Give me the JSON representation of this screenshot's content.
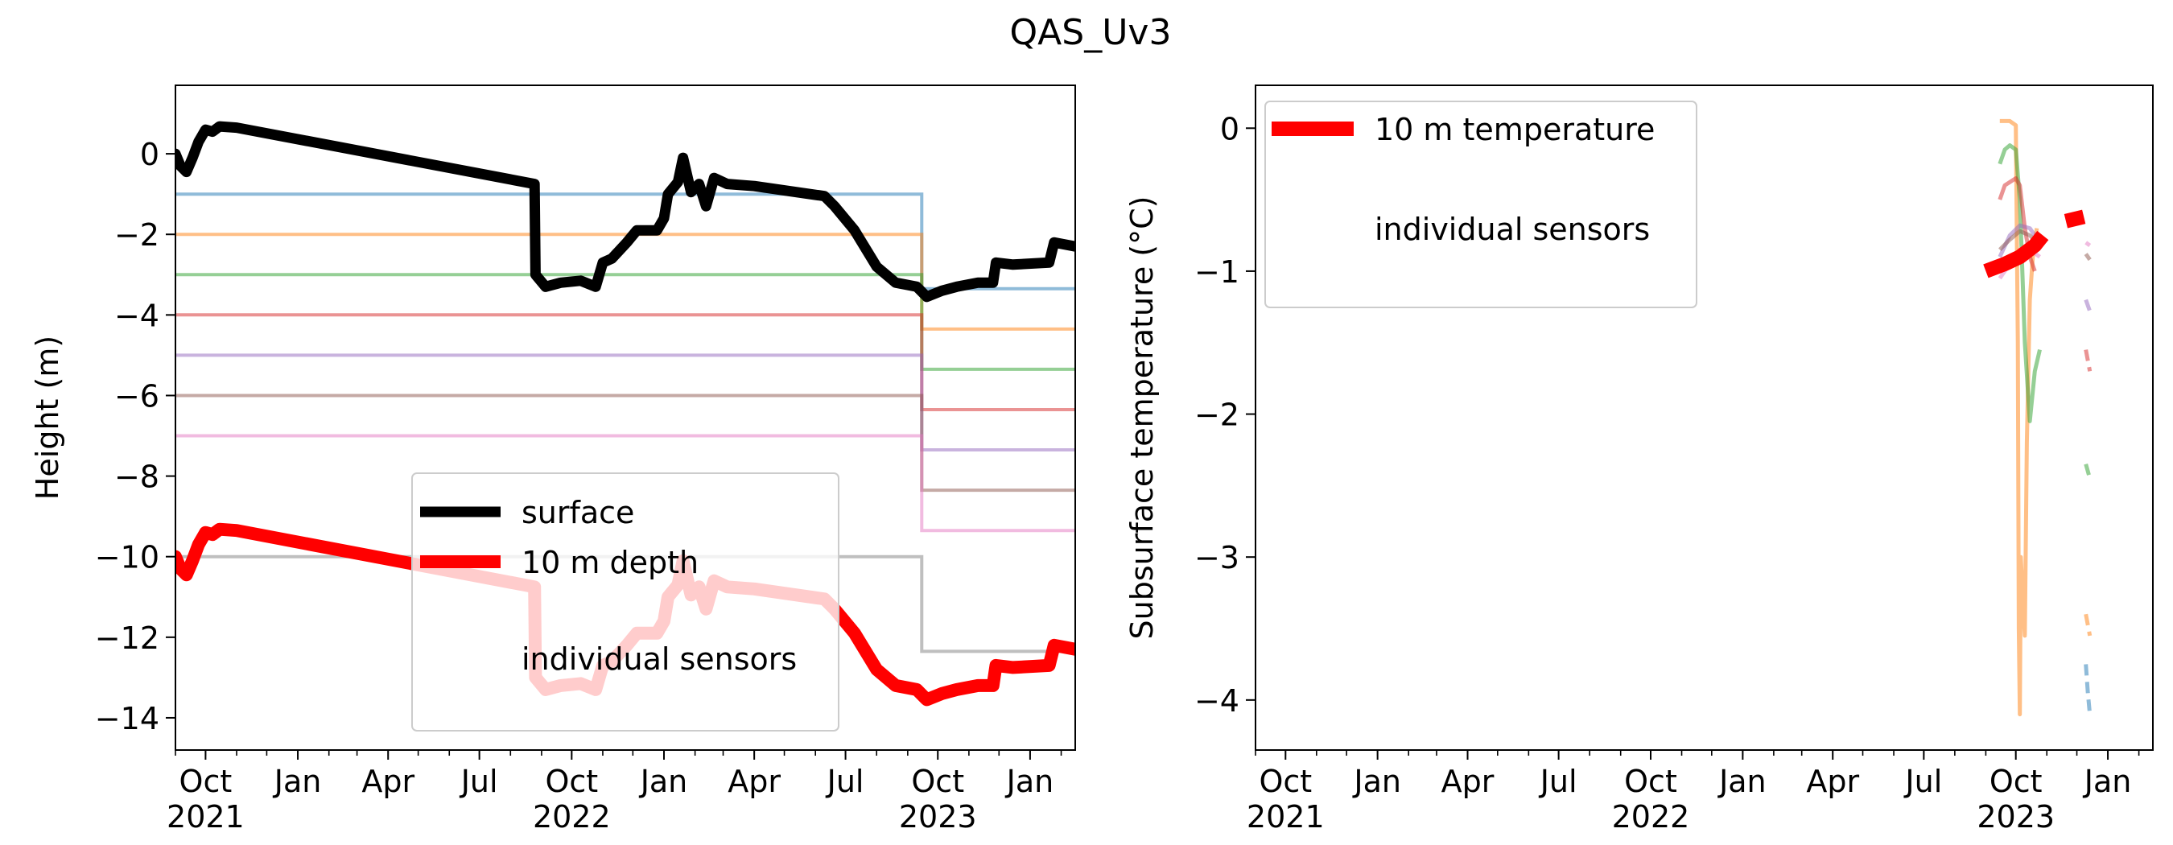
{
  "suptitle": "QAS_Uv3",
  "chart_data": [
    {
      "type": "line",
      "ylabel": "Height (m)",
      "xlim": [
        "2020-09-01",
        "2023-02-15"
      ],
      "ylim": [
        -14.8,
        1.7
      ],
      "yticks": [
        0,
        -2,
        -4,
        -6,
        -8,
        -10,
        -12,
        -14
      ],
      "xticks": [
        {
          "date": "2020-10-01",
          "label": "Oct",
          "year": "2021"
        },
        {
          "date": "2021-01-01",
          "label": "Jan",
          "year": ""
        },
        {
          "date": "2021-04-01",
          "label": "Apr",
          "year": ""
        },
        {
          "date": "2021-07-01",
          "label": "Jul",
          "year": ""
        },
        {
          "date": "2021-10-01",
          "label": "Oct",
          "year": "2022"
        },
        {
          "date": "2022-01-01",
          "label": "Jan",
          "year": ""
        },
        {
          "date": "2022-04-01",
          "label": "Apr",
          "year": ""
        },
        {
          "date": "2022-07-01",
          "label": "Jul",
          "year": ""
        },
        {
          "date": "2022-10-01",
          "label": "Oct",
          "year": "2023"
        },
        {
          "date": "2023-01-01",
          "label": "Jan",
          "year": ""
        }
      ],
      "legend": {
        "placement": "lower-center",
        "entries": [
          {
            "label": "surface",
            "color": "#000000"
          },
          {
            "label": "10 m depth",
            "color": "#ff0000"
          },
          {
            "label": "individual sensors",
            "color": ""
          }
        ]
      },
      "series": [
        {
          "legend": "surface",
          "color": "#000000",
          "points": [
            [
              "2020-09-01",
              0.0
            ],
            [
              "2020-09-06",
              -0.3
            ],
            [
              "2020-09-12",
              -0.45
            ],
            [
              "2020-09-18",
              -0.1
            ],
            [
              "2020-09-24",
              0.3
            ],
            [
              "2020-10-01",
              0.6
            ],
            [
              "2020-10-08",
              0.55
            ],
            [
              "2020-10-15",
              0.68
            ],
            [
              "2020-11-01",
              0.65
            ],
            [
              "2021-08-25",
              -0.75
            ],
            [
              "2021-08-26",
              -3.0
            ],
            [
              "2021-09-05",
              -3.3
            ],
            [
              "2021-09-20",
              -3.2
            ],
            [
              "2021-10-10",
              -3.15
            ],
            [
              "2021-10-25",
              -3.3
            ],
            [
              "2021-11-01",
              -2.7
            ],
            [
              "2021-11-10",
              -2.6
            ],
            [
              "2021-11-25",
              -2.2
            ],
            [
              "2021-12-05",
              -1.9
            ],
            [
              "2021-12-25",
              -1.9
            ],
            [
              "2022-01-01",
              -1.6
            ],
            [
              "2022-01-05",
              -1.0
            ],
            [
              "2022-01-15",
              -0.7
            ],
            [
              "2022-01-20",
              -0.1
            ],
            [
              "2022-01-28",
              -0.95
            ],
            [
              "2022-02-05",
              -0.75
            ],
            [
              "2022-02-12",
              -1.3
            ],
            [
              "2022-02-20",
              -0.6
            ],
            [
              "2022-03-05",
              -0.75
            ],
            [
              "2022-04-01",
              -0.8
            ],
            [
              "2022-06-10",
              -1.05
            ],
            [
              "2022-06-20",
              -1.3
            ],
            [
              "2022-07-10",
              -1.9
            ],
            [
              "2022-08-01",
              -2.8
            ],
            [
              "2022-08-20",
              -3.2
            ],
            [
              "2022-09-10",
              -3.3
            ],
            [
              "2022-09-20",
              -3.55
            ],
            [
              "2022-10-05",
              -3.4
            ],
            [
              "2022-10-20",
              -3.3
            ],
            [
              "2022-11-10",
              -3.2
            ],
            [
              "2022-11-25",
              -3.2
            ],
            [
              "2022-11-28",
              -2.7
            ],
            [
              "2022-12-15",
              -2.75
            ],
            [
              "2023-01-20",
              -2.7
            ],
            [
              "2023-01-25",
              -2.2
            ],
            [
              "2023-02-15",
              -2.3
            ]
          ]
        },
        {
          "legend": "10 m depth",
          "color": "#ff0000",
          "points": [
            [
              "2020-09-01",
              -10.0
            ],
            [
              "2020-09-06",
              -10.3
            ],
            [
              "2020-09-12",
              -10.45
            ],
            [
              "2020-09-18",
              -10.1
            ],
            [
              "2020-09-24",
              -9.7
            ],
            [
              "2020-10-01",
              -9.4
            ],
            [
              "2020-10-08",
              -9.45
            ],
            [
              "2020-10-15",
              -9.32
            ],
            [
              "2020-11-01",
              -9.35
            ],
            [
              "2021-08-25",
              -10.75
            ],
            [
              "2021-08-26",
              -13.0
            ],
            [
              "2021-09-05",
              -13.3
            ],
            [
              "2021-09-20",
              -13.2
            ],
            [
              "2021-10-10",
              -13.15
            ],
            [
              "2021-10-25",
              -13.3
            ],
            [
              "2021-11-01",
              -12.7
            ],
            [
              "2021-11-10",
              -12.6
            ],
            [
              "2021-11-25",
              -12.2
            ],
            [
              "2021-12-05",
              -11.9
            ],
            [
              "2021-12-25",
              -11.9
            ],
            [
              "2022-01-01",
              -11.6
            ],
            [
              "2022-01-05",
              -11.0
            ],
            [
              "2022-01-15",
              -10.7
            ],
            [
              "2022-01-20",
              -10.1
            ],
            [
              "2022-01-28",
              -10.95
            ],
            [
              "2022-02-05",
              -10.75
            ],
            [
              "2022-02-12",
              -11.3
            ],
            [
              "2022-02-20",
              -10.6
            ],
            [
              "2022-03-05",
              -10.75
            ],
            [
              "2022-04-01",
              -10.8
            ],
            [
              "2022-06-10",
              -11.05
            ],
            [
              "2022-06-20",
              -11.3
            ],
            [
              "2022-07-10",
              -11.9
            ],
            [
              "2022-08-01",
              -12.8
            ],
            [
              "2022-08-20",
              -13.2
            ],
            [
              "2022-09-10",
              -13.3
            ],
            [
              "2022-09-20",
              -13.55
            ],
            [
              "2022-10-05",
              -13.4
            ],
            [
              "2022-10-20",
              -13.3
            ],
            [
              "2022-11-10",
              -13.2
            ],
            [
              "2022-11-25",
              -13.2
            ],
            [
              "2022-11-28",
              -12.7
            ],
            [
              "2022-12-15",
              -12.75
            ],
            [
              "2023-01-20",
              -12.7
            ],
            [
              "2023-01-25",
              -12.2
            ],
            [
              "2023-02-15",
              -12.3
            ]
          ]
        }
      ],
      "sensor_depth_steps": [
        {
          "color": "#1f77b4",
          "points": [
            [
              "2020-09-01",
              -1
            ],
            [
              "2022-09-15",
              -1
            ],
            [
              "2022-09-15",
              -3.35
            ],
            [
              "2023-02-15",
              -3.35
            ]
          ]
        },
        {
          "color": "#ff7f0e",
          "points": [
            [
              "2020-09-01",
              -2
            ],
            [
              "2022-09-15",
              -2
            ],
            [
              "2022-09-15",
              -4.35
            ],
            [
              "2023-02-15",
              -4.35
            ]
          ]
        },
        {
          "color": "#2ca02c",
          "points": [
            [
              "2020-09-01",
              -3
            ],
            [
              "2022-09-15",
              -3
            ],
            [
              "2022-09-15",
              -5.35
            ],
            [
              "2023-02-15",
              -5.35
            ]
          ]
        },
        {
          "color": "#d62728",
          "points": [
            [
              "2020-09-01",
              -4
            ],
            [
              "2022-09-15",
              -4
            ],
            [
              "2022-09-15",
              -6.35
            ],
            [
              "2023-02-15",
              -6.35
            ]
          ]
        },
        {
          "color": "#9467bd",
          "points": [
            [
              "2020-09-01",
              -5
            ],
            [
              "2022-09-15",
              -5
            ],
            [
              "2022-09-15",
              -7.35
            ],
            [
              "2023-02-15",
              -7.35
            ]
          ]
        },
        {
          "color": "#8c564b",
          "points": [
            [
              "2020-09-01",
              -6
            ],
            [
              "2022-09-15",
              -6
            ],
            [
              "2022-09-15",
              -8.35
            ],
            [
              "2023-02-15",
              -8.35
            ]
          ]
        },
        {
          "color": "#e377c2",
          "points": [
            [
              "2020-09-01",
              -7
            ],
            [
              "2022-09-15",
              -7
            ],
            [
              "2022-09-15",
              -9.35
            ],
            [
              "2023-02-15",
              -9.35
            ]
          ]
        },
        {
          "color": "#7f7f7f",
          "points": [
            [
              "2020-09-01",
              -10
            ],
            [
              "2022-09-15",
              -10
            ],
            [
              "2022-09-15",
              -12.35
            ],
            [
              "2023-02-15",
              -12.35
            ]
          ]
        }
      ]
    },
    {
      "type": "line",
      "ylabel": "Subsurface temperature (°C)",
      "xlim": [
        "2020-09-01",
        "2023-02-15"
      ],
      "ylim": [
        -4.35,
        0.3
      ],
      "yticks": [
        0,
        -1,
        -2,
        -3,
        -4
      ],
      "xticks": [
        {
          "date": "2020-10-01",
          "label": "Oct",
          "year": "2021"
        },
        {
          "date": "2021-01-01",
          "label": "Jan",
          "year": ""
        },
        {
          "date": "2021-04-01",
          "label": "Apr",
          "year": ""
        },
        {
          "date": "2021-07-01",
          "label": "Jul",
          "year": ""
        },
        {
          "date": "2021-10-01",
          "label": "Oct",
          "year": "2022"
        },
        {
          "date": "2022-01-01",
          "label": "Jan",
          "year": ""
        },
        {
          "date": "2022-04-01",
          "label": "Apr",
          "year": ""
        },
        {
          "date": "2022-07-01",
          "label": "Jul",
          "year": ""
        },
        {
          "date": "2022-10-01",
          "label": "Oct",
          "year": "2023"
        },
        {
          "date": "2023-01-01",
          "label": "Jan",
          "year": ""
        }
      ],
      "legend": {
        "placement": "upper-left",
        "entries": [
          {
            "label": "10 m temperature",
            "color": "#ff0000"
          },
          {
            "label": "individual sensors",
            "color": ""
          }
        ]
      },
      "temperature_10m": {
        "color": "#ff0000",
        "segments": [
          [
            [
              "2022-09-01",
              -1.0
            ],
            [
              "2022-09-20",
              -0.95
            ],
            [
              "2022-10-05",
              -0.9
            ],
            [
              "2022-10-20",
              -0.82
            ],
            [
              "2022-10-28",
              -0.75
            ]
          ],
          [
            [
              "2022-11-20",
              -0.65
            ],
            [
              "2022-12-08",
              -0.62
            ]
          ]
        ]
      },
      "sensors": [
        {
          "color": "#ff7f0e",
          "solid": [
            [
              "2022-09-15",
              0.05
            ],
            [
              "2022-09-25",
              0.05
            ],
            [
              "2022-10-01",
              0.02
            ],
            [
              "2022-10-03",
              -1.5
            ],
            [
              "2022-10-04",
              -3.5
            ],
            [
              "2022-10-05",
              -4.1
            ],
            [
              "2022-10-06",
              -3.0
            ],
            [
              "2022-10-08",
              -3.3
            ],
            [
              "2022-10-10",
              -3.55
            ],
            [
              "2022-10-12",
              -2.2
            ],
            [
              "2022-10-15",
              -1.2
            ],
            [
              "2022-10-18",
              -0.9
            ],
            [
              "2022-10-22",
              -0.7
            ]
          ],
          "dashed": [
            [
              "2022-12-10",
              -3.4
            ],
            [
              "2022-12-14",
              -3.55
            ]
          ]
        },
        {
          "color": "#2ca02c",
          "solid": [
            [
              "2022-09-15",
              -0.25
            ],
            [
              "2022-09-20",
              -0.15
            ],
            [
              "2022-09-25",
              -0.12
            ],
            [
              "2022-10-01",
              -0.15
            ],
            [
              "2022-10-05",
              -0.5
            ],
            [
              "2022-10-10",
              -1.5
            ],
            [
              "2022-10-15",
              -2.05
            ],
            [
              "2022-10-20",
              -1.7
            ],
            [
              "2022-10-25",
              -1.55
            ]
          ],
          "dashed": [
            [
              "2022-12-10",
              -2.35
            ],
            [
              "2022-12-14",
              -2.45
            ]
          ]
        },
        {
          "color": "#d62728",
          "solid": [
            [
              "2022-09-15",
              -0.5
            ],
            [
              "2022-09-20",
              -0.4
            ],
            [
              "2022-10-01",
              -0.35
            ],
            [
              "2022-10-05",
              -0.4
            ],
            [
              "2022-10-10",
              -0.7
            ],
            [
              "2022-10-15",
              -0.9
            ],
            [
              "2022-10-20",
              -1.0
            ]
          ],
          "dashed": [
            [
              "2022-12-10",
              -1.55
            ],
            [
              "2022-12-14",
              -1.7
            ]
          ]
        },
        {
          "color": "#9467bd",
          "solid": [
            [
              "2022-09-15",
              -0.9
            ],
            [
              "2022-09-25",
              -0.75
            ],
            [
              "2022-10-05",
              -0.68
            ],
            [
              "2022-10-15",
              -0.7
            ],
            [
              "2022-10-25",
              -0.8
            ]
          ],
          "dashed": [
            [
              "2022-12-10",
              -1.2
            ],
            [
              "2022-12-14",
              -1.28
            ]
          ]
        },
        {
          "color": "#8c564b",
          "solid": [
            [
              "2022-09-15",
              -0.85
            ],
            [
              "2022-09-25",
              -0.78
            ],
            [
              "2022-10-05",
              -0.72
            ],
            [
              "2022-10-15",
              -0.75
            ],
            [
              "2022-10-25",
              -0.82
            ]
          ],
          "dashed": [
            [
              "2022-12-10",
              -0.88
            ],
            [
              "2022-12-14",
              -0.92
            ]
          ]
        },
        {
          "color": "#e377c2",
          "solid": [
            [
              "2022-09-15",
              -1.05
            ],
            [
              "2022-09-25",
              -0.95
            ],
            [
              "2022-10-05",
              -0.85
            ],
            [
              "2022-10-15",
              -0.85
            ],
            [
              "2022-10-25",
              -0.9
            ]
          ],
          "dashed": [
            [
              "2022-12-10",
              -0.8
            ],
            [
              "2022-12-14",
              -0.82
            ]
          ]
        },
        {
          "color": "#1f77b4",
          "solid": [],
          "dashed": [
            [
              "2022-12-10",
              -3.75
            ],
            [
              "2022-12-12",
              -3.95
            ],
            [
              "2022-12-14",
              -4.1
            ]
          ]
        }
      ]
    }
  ]
}
